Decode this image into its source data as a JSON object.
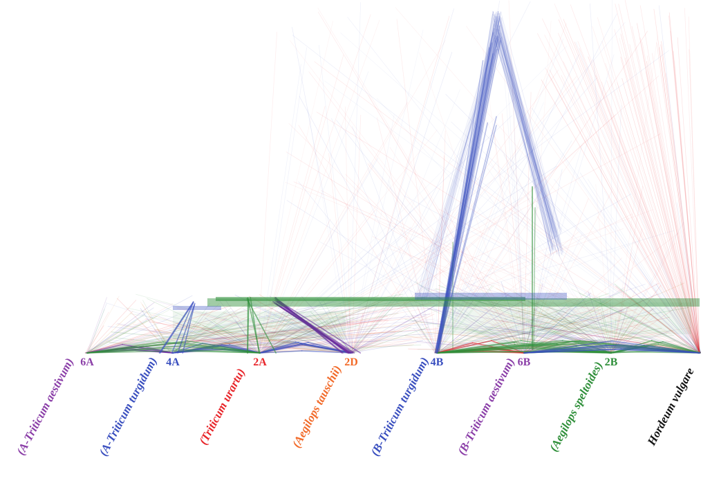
{
  "figure": {
    "nodes": [
      {
        "id": "6A",
        "code": "6A",
        "species": "(A-Triticum aestivum)",
        "color": "#8b3fa8"
      },
      {
        "id": "4A",
        "code": "4A",
        "species": "(A-Triticum turgidum)",
        "color": "#3a4fbf"
      },
      {
        "id": "2A",
        "code": "2A",
        "species": "(Triticum urartu)",
        "color": "#e8262b"
      },
      {
        "id": "2D",
        "code": "2D",
        "species": "(Aegilops tauschii)",
        "color": "#f26b2a"
      },
      {
        "id": "4B",
        "code": "4B",
        "species": "(B-Triticum turgidum)",
        "color": "#3a4fbf"
      },
      {
        "id": "6B",
        "code": "6B",
        "species": "(B-Triticum aestivum)",
        "color": "#8b3fa8"
      },
      {
        "id": "2B",
        "code": "2B",
        "species": "(Aegilops speltoides)",
        "color": "#2f8f3a"
      },
      {
        "id": "Hv",
        "code": "",
        "species": "Hordeum vulgare",
        "color": "#111111"
      }
    ],
    "edge_colors": {
      "red": "#e8262b",
      "blue": "#3a4fbf",
      "green": "#2f8f3a",
      "purple": "#6a2fa0",
      "orange": "#d07a2a"
    }
  }
}
